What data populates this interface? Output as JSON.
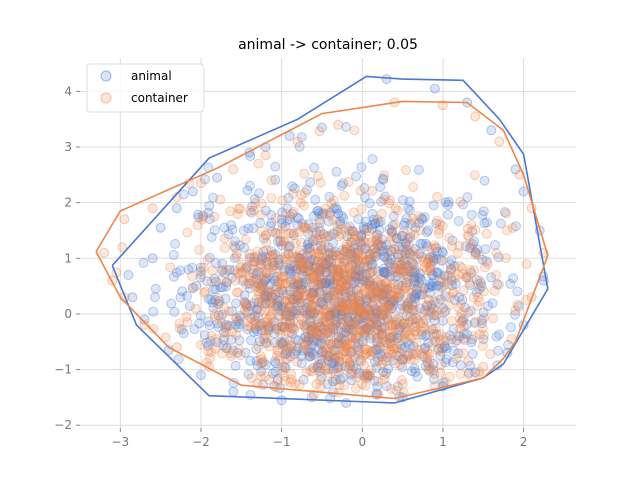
{
  "chart_data": {
    "type": "scatter",
    "title": "animal -> container; 0.05",
    "xlabel": "",
    "ylabel": "",
    "xlim": [
      -3.5,
      2.65
    ],
    "ylim": [
      -2.05,
      4.6
    ],
    "xticks": [
      -3,
      -2,
      -1,
      0,
      1,
      2
    ],
    "yticks": [
      -2,
      -1,
      0,
      1,
      2,
      3,
      4
    ],
    "grid": true,
    "legend_position": "top-left",
    "series": [
      {
        "name": "animal",
        "color": "#4878d0",
        "hull": [
          [
            -3.1,
            0.87
          ],
          [
            -1.9,
            2.8
          ],
          [
            -0.8,
            3.5
          ],
          [
            0.05,
            4.27
          ],
          [
            0.5,
            4.22
          ],
          [
            1.25,
            4.2
          ],
          [
            1.7,
            3.5
          ],
          [
            2.0,
            2.87
          ],
          [
            2.3,
            0.45
          ],
          [
            1.75,
            -0.9
          ],
          [
            1.5,
            -1.15
          ],
          [
            0.4,
            -1.6
          ],
          [
            -1.9,
            -1.47
          ],
          [
            -2.8,
            -0.2
          ],
          [
            -3.1,
            0.87
          ]
        ],
        "center": [
          -0.2,
          0.35
        ],
        "spread": [
          1.0,
          0.95
        ],
        "outliers": [
          [
            -2.9,
            0.7
          ],
          [
            -2.6,
            1.0
          ],
          [
            -2.5,
            1.55
          ],
          [
            -2.3,
            1.9
          ],
          [
            -2.1,
            2.2
          ],
          [
            -1.8,
            2.45
          ],
          [
            -1.4,
            2.9
          ],
          [
            -1.2,
            3.0
          ],
          [
            -0.9,
            3.2
          ],
          [
            -0.5,
            3.35
          ],
          [
            0.3,
            4.22
          ],
          [
            0.9,
            4.05
          ],
          [
            1.3,
            3.8
          ],
          [
            1.6,
            3.3
          ],
          [
            1.9,
            2.6
          ],
          [
            2.0,
            2.2
          ],
          [
            2.2,
            1.5
          ],
          [
            2.25,
            0.6
          ],
          [
            2.0,
            -0.2
          ],
          [
            1.8,
            -0.7
          ],
          [
            1.4,
            -1.05
          ],
          [
            1.0,
            -1.3
          ],
          [
            0.5,
            -1.5
          ],
          [
            -0.2,
            -1.6
          ],
          [
            -1.0,
            -1.55
          ],
          [
            -1.6,
            -1.4
          ],
          [
            -2.0,
            -1.1
          ],
          [
            -2.4,
            -0.65
          ],
          [
            -2.7,
            -0.1
          ],
          [
            -2.85,
            0.3
          ]
        ]
      },
      {
        "name": "container",
        "color": "#ee854a",
        "hull": [
          [
            -3.3,
            1.12
          ],
          [
            -3.0,
            1.85
          ],
          [
            -1.8,
            2.62
          ],
          [
            -0.5,
            3.6
          ],
          [
            0.5,
            3.82
          ],
          [
            1.3,
            3.8
          ],
          [
            1.75,
            3.3
          ],
          [
            2.0,
            2.5
          ],
          [
            2.3,
            1.05
          ],
          [
            1.9,
            -0.5
          ],
          [
            1.75,
            -0.8
          ],
          [
            1.5,
            -1.15
          ],
          [
            0.4,
            -1.52
          ],
          [
            -1.5,
            -1.28
          ],
          [
            -2.4,
            -0.6
          ],
          [
            -3.0,
            0.3
          ],
          [
            -3.3,
            1.12
          ]
        ],
        "center": [
          -0.2,
          0.2
        ],
        "spread": [
          0.95,
          0.9
        ],
        "outliers": [
          [
            -3.2,
            1.1
          ],
          [
            -2.95,
            1.7
          ],
          [
            -2.6,
            1.9
          ],
          [
            -2.3,
            2.1
          ],
          [
            -2.0,
            2.35
          ],
          [
            -1.6,
            2.6
          ],
          [
            -1.2,
            2.85
          ],
          [
            -0.8,
            3.1
          ],
          [
            -0.3,
            3.4
          ],
          [
            0.4,
            3.8
          ],
          [
            1.0,
            3.75
          ],
          [
            1.4,
            3.55
          ],
          [
            1.7,
            3.1
          ],
          [
            1.95,
            2.5
          ],
          [
            2.1,
            1.9
          ],
          [
            2.25,
            1.1
          ],
          [
            2.1,
            0.3
          ],
          [
            1.85,
            -0.45
          ],
          [
            1.5,
            -0.95
          ],
          [
            0.9,
            -1.3
          ],
          [
            0.2,
            -1.45
          ],
          [
            -0.6,
            -1.45
          ],
          [
            -1.3,
            -1.25
          ],
          [
            -1.9,
            -0.95
          ],
          [
            -2.3,
            -0.6
          ],
          [
            -2.7,
            -0.2
          ],
          [
            -2.95,
            0.3
          ],
          [
            -3.1,
            0.6
          ]
        ]
      }
    ]
  }
}
